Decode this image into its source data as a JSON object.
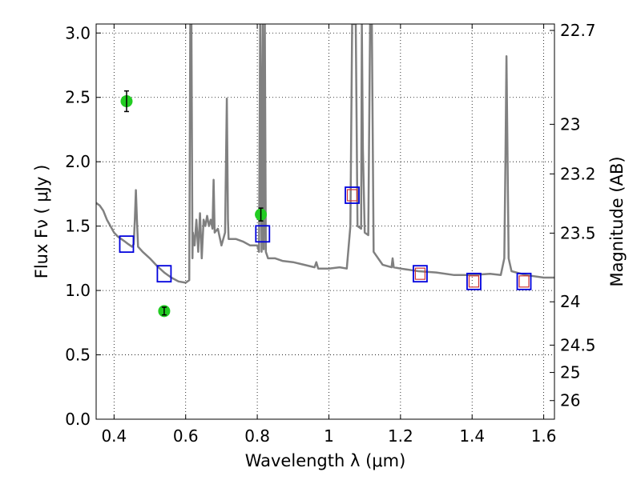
{
  "chart_data": {
    "type": "scatter",
    "xlabel": "Wavelength  λ (μm)",
    "ylabel": "Flux  Fν  ( μJy )",
    "y2label": "Magnitude (AB)",
    "xlim": [
      0.35,
      1.63
    ],
    "ylim": [
      0.0,
      3.07
    ],
    "grid": true,
    "x_ticks": [
      0.4,
      0.6,
      0.8,
      1.0,
      1.2,
      1.4,
      1.6
    ],
    "x_tick_labels": [
      "0.4",
      "0.6",
      "0.8",
      "1",
      "1.2",
      "1.4",
      "1.6"
    ],
    "y_ticks": [
      0.0,
      0.5,
      1.0,
      1.5,
      2.0,
      2.5,
      3.0
    ],
    "y_tick_labels": [
      "0.0",
      "0.5",
      "1.0",
      "1.5",
      "2.0",
      "2.5",
      "3.0"
    ],
    "mag_ticks": [
      22.7,
      23,
      23.2,
      23.5,
      24,
      24.5,
      25,
      26
    ],
    "mag_tick_labels": [
      "22.7",
      "23",
      "23.2",
      "23.5",
      "24",
      "24.5",
      "25",
      "26"
    ],
    "series": [
      {
        "style": "line",
        "color": "#808080",
        "x": [
          0.35,
          0.36,
          0.37,
          0.38,
          0.39,
          0.4,
          0.41,
          0.42,
          0.43,
          0.44,
          0.45,
          0.455,
          0.458,
          0.461,
          0.464,
          0.467,
          0.48,
          0.5,
          0.52,
          0.54,
          0.56,
          0.58,
          0.6,
          0.61,
          0.613,
          0.616,
          0.619,
          0.62,
          0.625,
          0.63,
          0.635,
          0.64,
          0.645,
          0.65,
          0.655,
          0.66,
          0.665,
          0.67,
          0.675,
          0.678,
          0.681,
          0.69,
          0.7,
          0.71,
          0.715,
          0.718,
          0.72,
          0.74,
          0.76,
          0.78,
          0.8,
          0.805,
          0.808,
          0.812,
          0.815,
          0.818,
          0.821,
          0.824,
          0.83,
          0.85,
          0.87,
          0.9,
          0.93,
          0.96,
          0.965,
          0.97,
          1.0,
          1.03,
          1.05,
          1.06,
          1.065,
          1.07,
          1.075,
          1.08,
          1.09,
          1.092,
          1.095,
          1.1,
          1.11,
          1.115,
          1.12,
          1.125,
          1.15,
          1.175,
          1.178,
          1.181,
          1.2,
          1.25,
          1.3,
          1.35,
          1.4,
          1.45,
          1.48,
          1.49,
          1.493,
          1.496,
          1.499,
          1.502,
          1.51,
          1.55,
          1.6,
          1.63
        ],
        "y": [
          1.68,
          1.66,
          1.62,
          1.55,
          1.5,
          1.45,
          1.42,
          1.4,
          1.38,
          1.36,
          1.34,
          1.36,
          1.55,
          1.78,
          1.55,
          1.34,
          1.3,
          1.25,
          1.19,
          1.14,
          1.1,
          1.07,
          1.06,
          1.08,
          3.07,
          3.07,
          1.25,
          1.45,
          1.35,
          1.55,
          1.3,
          1.6,
          1.25,
          1.55,
          1.5,
          1.58,
          1.5,
          1.55,
          1.48,
          1.86,
          1.45,
          1.48,
          1.35,
          1.45,
          2.49,
          1.55,
          1.4,
          1.4,
          1.38,
          1.35,
          1.35,
          1.3,
          3.07,
          1.3,
          3.07,
          1.32,
          3.07,
          1.3,
          1.25,
          1.25,
          1.23,
          1.22,
          1.2,
          1.18,
          1.22,
          1.17,
          1.17,
          1.18,
          1.17,
          1.5,
          3.07,
          3.07,
          3.07,
          1.5,
          1.48,
          3.07,
          2.1,
          1.45,
          1.43,
          3.07,
          3.07,
          1.3,
          1.2,
          1.18,
          1.25,
          1.18,
          1.17,
          1.15,
          1.14,
          1.12,
          1.12,
          1.13,
          1.12,
          1.25,
          2.0,
          2.82,
          2.0,
          1.25,
          1.15,
          1.12,
          1.1,
          1.1
        ]
      },
      {
        "style": "errorbar-points",
        "color": "#22cc22",
        "x": [
          0.435,
          0.54,
          0.81
        ],
        "y": [
          2.47,
          0.84,
          1.59
        ],
        "yerr": [
          0.08,
          0.03,
          0.05
        ]
      },
      {
        "style": "open-squares",
        "color": "#0000dd",
        "x": [
          0.435,
          0.54,
          0.815,
          1.065,
          1.255,
          1.405,
          1.545
        ],
        "y": [
          1.36,
          1.13,
          1.44,
          1.74,
          1.13,
          1.07,
          1.07
        ]
      },
      {
        "style": "small-squares",
        "color": "#cc3333",
        "x": [
          1.065,
          1.255,
          1.405,
          1.545
        ],
        "y": [
          1.74,
          1.13,
          1.07,
          1.07
        ]
      }
    ]
  }
}
